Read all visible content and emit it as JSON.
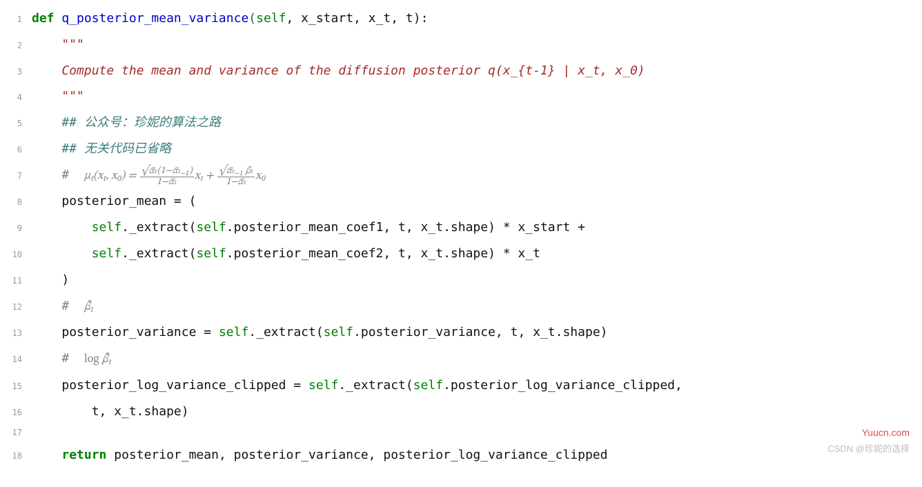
{
  "colors": {
    "background": "#ffffff",
    "text": "#111111",
    "gutter": "#9a9a9a",
    "keyword": "#008000",
    "func": "#0000c8",
    "self": "#008000",
    "docstring": "#a52a2a",
    "comment": "#3c7d7d",
    "math_comment": "#808080",
    "punct": "#555555",
    "watermark1": "#d9363e",
    "watermark2": "#bdbdbd"
  },
  "typography": {
    "mono_family": "Menlo / Consolas",
    "code_fontsize_pt": 14,
    "gutter_fontsize_pt": 9,
    "math_family": "serif-italic",
    "line_height": 2.1
  },
  "watermarks": {
    "top": "Yuucn.com",
    "bottom": "CSDN @珍妮的选择"
  },
  "gutter": [
    "1",
    "2",
    "3",
    "4",
    "5",
    "6",
    "7",
    "8",
    "9",
    "10",
    "11",
    "12",
    "13",
    "14",
    "15",
    "16",
    "17",
    "18"
  ],
  "code": {
    "l1": {
      "kw": "def",
      "fn": "q_posterior_mean_variance",
      "slf": "self",
      "args_rest": ", x_start, x_t, t):"
    },
    "l2": "\"\"\"",
    "l3": "Compute the mean and variance of the diffusion posterior q(x_{t-1} | x_t, x_0)",
    "l4": "\"\"\"",
    "l5": "## 公众号：珍妮的算法之路",
    "l6": "## 无关代码已省略",
    "l7": {
      "prefix": "#  ",
      "mu": "μ",
      "sub_t": "t",
      "open": "(x",
      "x0": ", x",
      "sub0": "0",
      "close": ") = ",
      "frac1_num": "√α̅ₜ(1−α̅ₜ₋₁)",
      "frac1_den": "1−α̅ₜ",
      "xt": "x",
      "plus": " + ",
      "frac2_num": "√α̅ₜ₋₁ βₜ",
      "frac2_den": "1−α̅ₜ",
      "x0lbl": "x"
    },
    "l8": "posterior_mean = (",
    "l9": {
      "slf1": "self",
      "m1": "._extract(",
      "slf2": "self",
      "m2": ".posterior_mean_coef1, t, x_t.shape) * x_start +"
    },
    "l10": {
      "slf1": "self",
      "m1": "._extract(",
      "slf2": "self",
      "m2": ".posterior_mean_coef2, t, x_t.shape) * x_t"
    },
    "l11": ")",
    "l12": {
      "prefix": "#  ",
      "sym": "β̃",
      "sub": "t"
    },
    "l13": {
      "a": "posterior_variance = ",
      "slf1": "self",
      "b": "._extract(",
      "slf2": "self",
      "c": ".posterior_variance, t, x_t.shape)"
    },
    "l14": {
      "prefix": "#  ",
      "log": "log ",
      "sym": "β̃",
      "sub": "t"
    },
    "l15": {
      "a": "posterior_log_variance_clipped = ",
      "slf1": "self",
      "b": "._extract(",
      "slf2": "self",
      "c": ".posterior_log_variance_clipped,"
    },
    "l16": "t, x_t.shape)",
    "l17": "",
    "l18": {
      "kw": "return",
      "rest": " posterior_mean, posterior_variance, posterior_log_variance_clipped"
    }
  },
  "indent": {
    "i1": "    ",
    "i2": "        ",
    "i3": "            "
  }
}
